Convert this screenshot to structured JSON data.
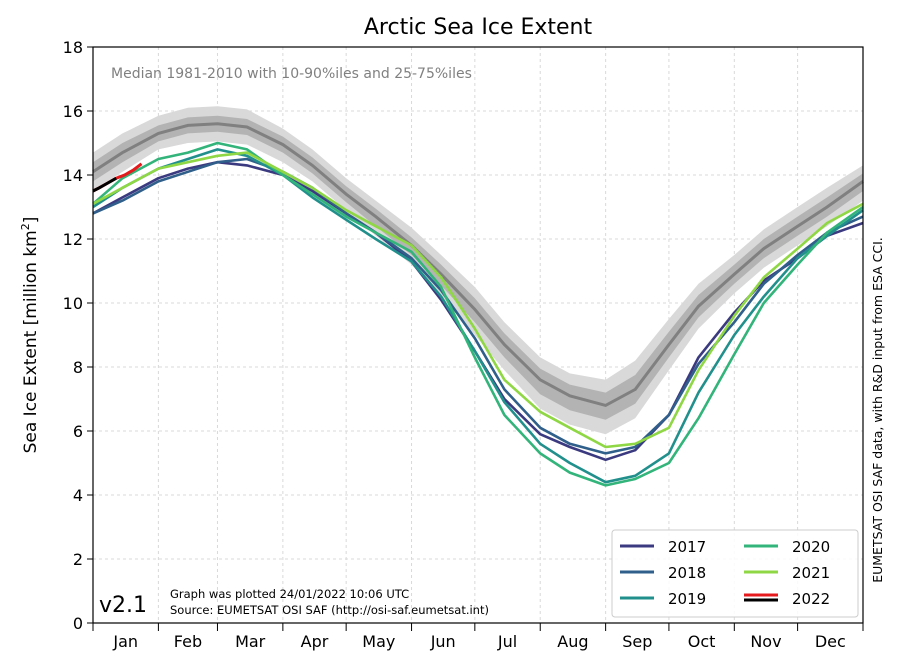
{
  "chart_data": {
    "type": "line",
    "title": "Arctic Sea Ice Extent",
    "subtitle": "Median 1981-2010 with 10-90%iles and 25-75%iles",
    "ylabel_main": "Sea Ice Extent [million km",
    "ylabel_sup": "2",
    "ylabel_end": "]",
    "ylim": [
      0,
      18
    ],
    "yticks": [
      "0",
      "2",
      "4",
      "6",
      "8",
      "10",
      "12",
      "14",
      "16",
      "18"
    ],
    "months": [
      "Jan",
      "Feb",
      "Mar",
      "Apr",
      "May",
      "Jun",
      "Jul",
      "Aug",
      "Sep",
      "Oct",
      "Nov",
      "Dec"
    ],
    "xlim": [
      1,
      366
    ],
    "grid": true,
    "legend_position": "bottom-right",
    "version": "v2.1",
    "footnote_1": "Graph was plotted 24/01/2022 10:06 UTC",
    "footnote_2": "Source: EUMETSAT OSI SAF (http://osi-saf.eumetsat.int)",
    "side_note": "EUMETSAT OSI SAF data, with R&D input from ESA CCI.",
    "colors": {
      "2017": "#3b3a80",
      "2018": "#2f5f8a",
      "2019": "#21908c",
      "2020": "#32b47a",
      "2021": "#8fd744",
      "2022": "#000000",
      "2022_accent": "#e41a1c",
      "median": "#808080",
      "band_outer": "#d9d9d9",
      "band_inner": "#b3b3b3"
    },
    "median": {
      "x": [
        1,
        15,
        32,
        46,
        60,
        74,
        91,
        105,
        121,
        135,
        152,
        166,
        182,
        196,
        213,
        227,
        244,
        258,
        274,
        288,
        305,
        319,
        335,
        349,
        366
      ],
      "y": [
        14.1,
        14.7,
        15.3,
        15.55,
        15.6,
        15.5,
        14.95,
        14.3,
        13.4,
        12.7,
        11.8,
        10.9,
        9.8,
        8.7,
        7.6,
        7.1,
        6.8,
        7.3,
        8.7,
        9.9,
        10.9,
        11.7,
        12.4,
        13.0,
        13.8
      ]
    },
    "band_10_90": {
      "x": [
        1,
        15,
        32,
        46,
        60,
        74,
        91,
        105,
        121,
        135,
        152,
        166,
        182,
        196,
        213,
        227,
        244,
        258,
        274,
        288,
        305,
        319,
        335,
        349,
        366
      ],
      "low": [
        13.5,
        14.1,
        14.8,
        15.0,
        15.05,
        14.95,
        14.4,
        13.8,
        12.9,
        12.1,
        11.2,
        10.2,
        9.0,
        7.9,
        6.7,
        6.2,
        5.9,
        6.4,
        7.9,
        9.2,
        10.3,
        11.1,
        11.8,
        12.4,
        13.2
      ],
      "high": [
        14.7,
        15.3,
        15.85,
        16.1,
        16.15,
        16.05,
        15.45,
        14.8,
        13.9,
        13.2,
        12.35,
        11.5,
        10.5,
        9.4,
        8.3,
        7.8,
        7.6,
        8.2,
        9.5,
        10.6,
        11.5,
        12.3,
        13.0,
        13.6,
        14.3
      ]
    },
    "band_25_75": {
      "x": [
        1,
        15,
        32,
        46,
        60,
        74,
        91,
        105,
        121,
        135,
        152,
        166,
        182,
        196,
        213,
        227,
        244,
        258,
        274,
        288,
        305,
        319,
        335,
        349,
        366
      ],
      "low": [
        13.8,
        14.4,
        15.05,
        15.3,
        15.35,
        15.25,
        14.7,
        14.05,
        13.15,
        12.4,
        11.5,
        10.55,
        9.4,
        8.3,
        7.15,
        6.65,
        6.35,
        6.85,
        8.3,
        9.55,
        10.6,
        11.4,
        12.1,
        12.7,
        13.5
      ],
      "high": [
        14.4,
        15.0,
        15.55,
        15.8,
        15.85,
        15.75,
        15.2,
        14.55,
        13.65,
        12.95,
        12.05,
        11.2,
        10.15,
        9.05,
        7.95,
        7.45,
        7.2,
        7.75,
        9.1,
        10.25,
        11.2,
        12.0,
        12.7,
        13.3,
        14.05
      ]
    },
    "series": [
      {
        "name": "2017",
        "x": [
          1,
          15,
          32,
          46,
          60,
          74,
          91,
          105,
          121,
          135,
          152,
          166,
          182,
          196,
          213,
          227,
          244,
          258,
          274,
          288,
          305,
          319,
          335,
          349,
          366
        ],
        "y": [
          12.8,
          13.3,
          13.9,
          14.2,
          14.4,
          14.3,
          14.0,
          13.5,
          12.8,
          12.2,
          11.3,
          10.1,
          8.5,
          7.0,
          5.9,
          5.5,
          5.1,
          5.4,
          6.5,
          8.3,
          9.7,
          10.7,
          11.4,
          12.1,
          12.5
        ]
      },
      {
        "name": "2018",
        "x": [
          1,
          15,
          32,
          46,
          60,
          74,
          91,
          105,
          121,
          135,
          152,
          166,
          182,
          196,
          213,
          227,
          244,
          258,
          274,
          288,
          305,
          319,
          335,
          349,
          366
        ],
        "y": [
          12.8,
          13.2,
          13.8,
          14.1,
          14.4,
          14.5,
          14.1,
          13.6,
          12.8,
          12.2,
          11.4,
          10.4,
          8.9,
          7.3,
          6.1,
          5.6,
          5.3,
          5.5,
          6.5,
          8.1,
          9.4,
          10.6,
          11.5,
          12.2,
          12.7
        ]
      },
      {
        "name": "2019",
        "x": [
          1,
          15,
          32,
          46,
          60,
          74,
          91,
          105,
          121,
          135,
          152,
          166,
          182,
          196,
          213,
          227,
          244,
          258,
          274,
          288,
          305,
          319,
          335,
          349,
          366
        ],
        "y": [
          13.0,
          13.6,
          14.2,
          14.5,
          14.8,
          14.6,
          14.0,
          13.3,
          12.6,
          12.0,
          11.3,
          10.2,
          8.5,
          6.9,
          5.6,
          5.0,
          4.4,
          4.6,
          5.3,
          7.2,
          9.0,
          10.2,
          11.4,
          12.1,
          12.9
        ]
      },
      {
        "name": "2020",
        "x": [
          1,
          15,
          32,
          46,
          60,
          74,
          91,
          105,
          121,
          135,
          152,
          166,
          182,
          196,
          213,
          227,
          244,
          258,
          274,
          288,
          305,
          319,
          335,
          349,
          366
        ],
        "y": [
          13.1,
          13.9,
          14.5,
          14.7,
          15.0,
          14.8,
          14.0,
          13.4,
          12.7,
          12.2,
          11.6,
          10.5,
          8.3,
          6.5,
          5.3,
          4.7,
          4.3,
          4.5,
          5.0,
          6.4,
          8.4,
          10.0,
          11.2,
          12.2,
          13.0
        ]
      },
      {
        "name": "2021",
        "x": [
          1,
          15,
          32,
          46,
          60,
          74,
          91,
          105,
          121,
          135,
          152,
          166,
          182,
          196,
          213,
          227,
          244,
          258,
          274,
          288,
          305,
          319,
          335,
          349,
          366
        ],
        "y": [
          13.1,
          13.6,
          14.2,
          14.4,
          14.6,
          14.7,
          14.1,
          13.6,
          12.9,
          12.4,
          11.8,
          10.8,
          9.2,
          7.6,
          6.6,
          6.1,
          5.5,
          5.6,
          6.1,
          7.9,
          9.6,
          10.8,
          11.7,
          12.5,
          13.1
        ]
      },
      {
        "name": "2022",
        "x": [
          1,
          4,
          8,
          12,
          16,
          20,
          24
        ],
        "y": [
          13.5,
          13.6,
          13.75,
          13.9,
          14.0,
          14.15,
          14.35
        ]
      }
    ]
  }
}
